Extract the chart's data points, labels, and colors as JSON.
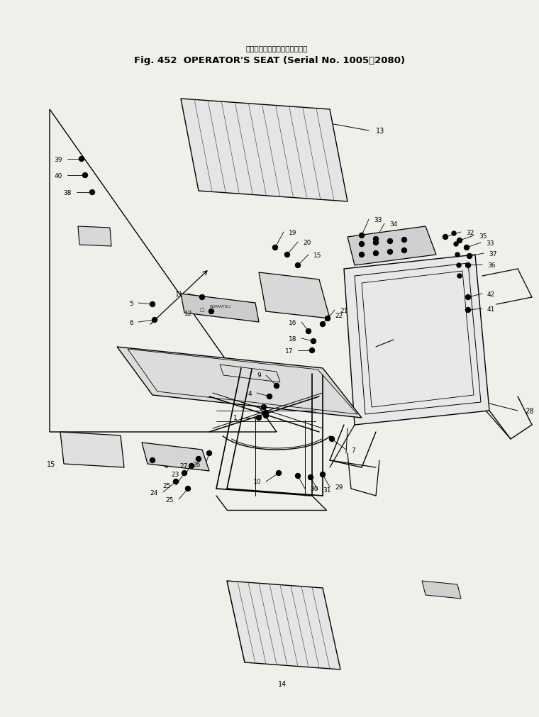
{
  "bg_color": "#f0f0eb",
  "line_color": "#000000",
  "title_jp": "オペレータ　シート（適用号機",
  "title_en": "Fig. 452  OPERATOR'S SEAT (Serial No. 1005～2080)"
}
